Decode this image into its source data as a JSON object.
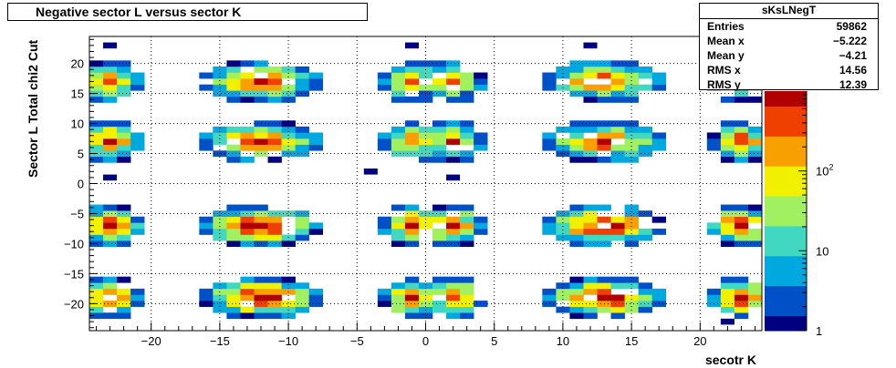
{
  "title": "Negative sector L versus sector K",
  "stats": {
    "name": "sKsLNegT",
    "rows": [
      {
        "label": "Entries",
        "value": "59862"
      },
      {
        "label": "Mean x",
        "value": "−5.222"
      },
      {
        "label": "Mean y",
        "value": "−4.21"
      },
      {
        "label": "RMS x",
        "value": "14.56"
      },
      {
        "label": "RMS y",
        "value": "12.39"
      }
    ]
  },
  "chart_data": {
    "type": "heatmap",
    "title": "Negative sector L versus sector K",
    "xlabel": "secotr K",
    "ylabel": "Sector L  Total chi2 Cut",
    "xlim": [
      -24.5,
      24.5
    ],
    "ylim": [
      -24.5,
      24.5
    ],
    "x_ticks": [
      "−20",
      "−15",
      "−10",
      "−5",
      "0",
      "5",
      "10",
      "15",
      "20"
    ],
    "y_ticks": [
      "−20",
      "−15",
      "−10",
      "−5",
      "0",
      "5",
      "10",
      "15",
      "20"
    ],
    "z_scale": "log",
    "z_range": [
      1,
      1000
    ],
    "z_ticks": [
      "1",
      "10",
      "10^2"
    ],
    "grid": true,
    "colormap": [
      "#000080",
      "#0050c8",
      "#00a8e0",
      "#40d8c0",
      "#a0f060",
      "#f0f000",
      "#f8a000",
      "#f04000",
      "#b00000"
    ],
    "clusters_x": [
      {
        "center": -23,
        "halfwidth": 1.5
      },
      {
        "center": -12,
        "halfwidth": 3.5
      },
      {
        "center": -1,
        "halfwidth": 1.5
      },
      {
        "center": 2,
        "halfwidth": 1.5
      },
      {
        "center": 13,
        "halfwidth": 3.5
      },
      {
        "center": 23,
        "halfwidth": 1.5
      }
    ],
    "clusters_y": [
      {
        "center": -19,
        "halfwidth": 2.5
      },
      {
        "center": -7,
        "halfwidth": 2.5
      },
      {
        "center": 7,
        "halfwidth": 2.5
      },
      {
        "center": 17,
        "halfwidth": 2.5
      }
    ]
  }
}
